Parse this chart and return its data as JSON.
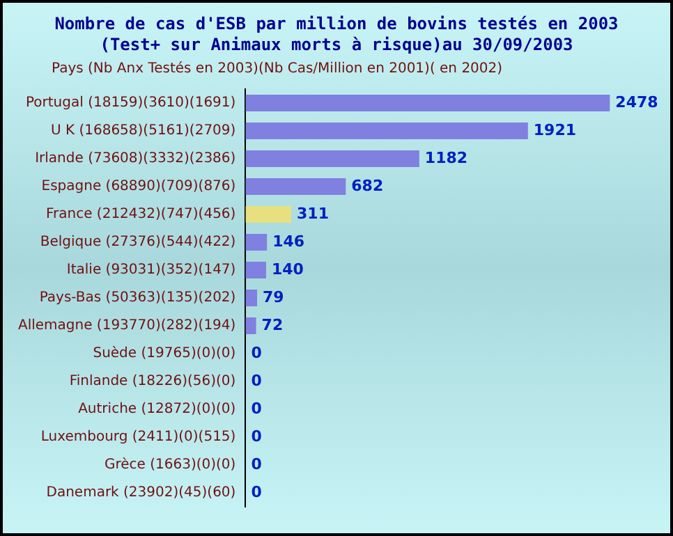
{
  "chart_data": {
    "type": "bar",
    "orientation": "horizontal",
    "title": "Nombre de cas d'ESB par million de bovins testés en 2003\n(Test+ sur Animaux morts à risque)au 30/09/2003",
    "ylabel": "Pays (Nb Anx Testés en 2003)(Nb Cas/Million en 2001)( en 2002)",
    "categories": [
      "Portugal (18159)(3610)(1691)",
      "U K (168658)(5161)(2709)",
      "Irlande (73608)(3332)(2386)",
      "Espagne (68890)(709)(876)",
      "France (212432)(747)(456)",
      "Belgique (27376)(544)(422)",
      "Italie (93031)(352)(147)",
      "Pays-Bas (50363)(135)(202)",
      "Allemagne (193770)(282)(194)",
      "Suède (19765)(0)(0)",
      "Finlande (18226)(56)(0)",
      "Autriche (12872)(0)(0)",
      "Luxembourg (2411)(0)(515)",
      "Grèce (1663)(0)(0)",
      "Danemark (23902)(45)(60)"
    ],
    "values": [
      2478,
      1921,
      1182,
      682,
      311,
      146,
      140,
      79,
      72,
      0,
      0,
      0,
      0,
      0,
      0
    ],
    "colors": [
      "#8080e0",
      "#8080e0",
      "#8080e0",
      "#8080e0",
      "#e8e080",
      "#8080e0",
      "#8080e0",
      "#8080e0",
      "#8080e0",
      "#8080e0",
      "#8080e0",
      "#8080e0",
      "#8080e0",
      "#8080e0",
      "#8080e0"
    ],
    "data_labels": true,
    "legend": false,
    "grid": false
  }
}
